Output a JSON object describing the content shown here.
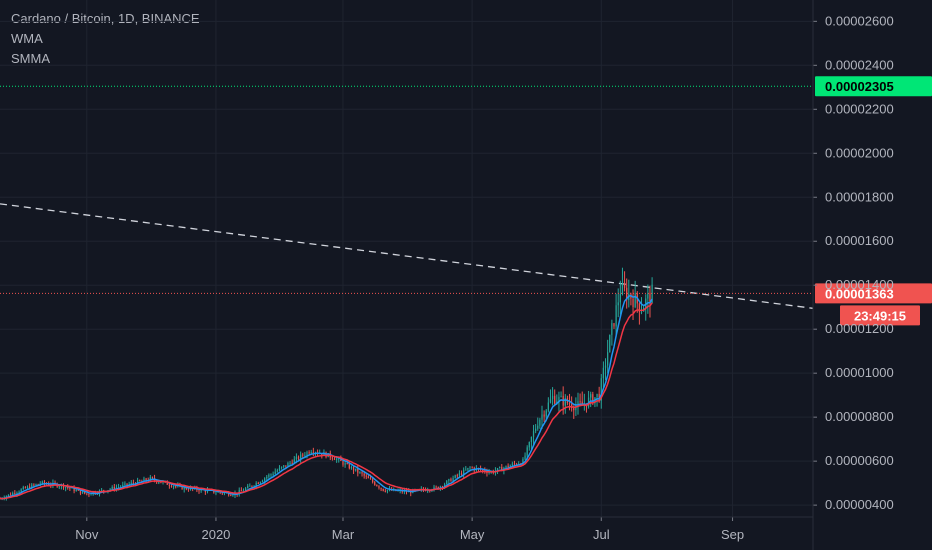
{
  "legend": {
    "title": "Cardano / Bitcoin, 1D, BINANCE",
    "indicators": [
      "WMA",
      "SMMA"
    ]
  },
  "colors": {
    "background": "#131722",
    "grid": "#1f2430",
    "up": "#26a69a",
    "down": "#ef5350",
    "wma": "#2196f3",
    "smma": "#f23645",
    "trendline": "#d1d4dc",
    "green_tag": "#00e676",
    "red_tag": "#f05350"
  },
  "chart_data": {
    "type": "candlestick",
    "title": "Cardano / Bitcoin, 1D, BINANCE",
    "x_tick_labels": [
      "Nov",
      "2020",
      "Mar",
      "May",
      "Jul",
      "Sep"
    ],
    "y_tick_labels": [
      "0.00002600",
      "0.00002400",
      "0.00002200",
      "0.00002000",
      "0.00001800",
      "0.00001600",
      "0.00001400",
      "0.00001200",
      "0.00001000",
      "0.00000800",
      "0.00000600",
      "0.00000400"
    ],
    "ylim": [
      3.46e-06,
      2.697e-05
    ],
    "x_range": [
      "2019-09-21",
      "2020-10-09"
    ],
    "grid": true,
    "price_levels": [
      {
        "label": "0.00002305",
        "value": 2.305e-05,
        "color": "green"
      },
      {
        "label": "0.00001363",
        "value": 1.363e-05,
        "color": "red"
      }
    ],
    "countdown": "23:49:15",
    "trendline": {
      "start": [
        "2019-09-21",
        1.77e-05
      ],
      "end": [
        "2020-10-09",
        1.295e-05
      ],
      "style": "dashed"
    },
    "ohlc_anchors": [
      [
        "2019-09-21",
        4.3e-06
      ],
      [
        "2019-10-01",
        4.7e-06
      ],
      [
        "2019-10-10",
        5e-06
      ],
      [
        "2019-10-20",
        4.9e-06
      ],
      [
        "2019-11-01",
        4.5e-06
      ],
      [
        "2019-11-15",
        4.8e-06
      ],
      [
        "2019-12-01",
        5.2e-06
      ],
      [
        "2019-12-15",
        4.8e-06
      ],
      [
        "2020-01-01",
        4.6e-06
      ],
      [
        "2020-01-10",
        4.5e-06
      ],
      [
        "2020-01-20",
        5e-06
      ],
      [
        "2020-02-01",
        5.7e-06
      ],
      [
        "2020-02-15",
        6.5e-06
      ],
      [
        "2020-02-25",
        6.2e-06
      ],
      [
        "2020-03-10",
        5.4e-06
      ],
      [
        "2020-03-20",
        4.7e-06
      ],
      [
        "2020-04-01",
        4.6e-06
      ],
      [
        "2020-04-15",
        4.8e-06
      ],
      [
        "2020-04-30",
        5.7e-06
      ],
      [
        "2020-05-10",
        5.5e-06
      ],
      [
        "2020-05-25",
        6e-06
      ],
      [
        "2020-06-01",
        7.8e-06
      ],
      [
        "2020-06-08",
        8.9e-06
      ],
      [
        "2020-06-20",
        8.5e-06
      ],
      [
        "2020-06-30",
        9e-06
      ],
      [
        "2020-07-05",
        1.15e-05
      ],
      [
        "2020-07-10",
        1.38e-05
      ],
      [
        "2020-07-15",
        1.35e-05
      ],
      [
        "2020-07-20",
        1.3e-05
      ],
      [
        "2020-07-25",
        1.363e-05
      ]
    ]
  }
}
